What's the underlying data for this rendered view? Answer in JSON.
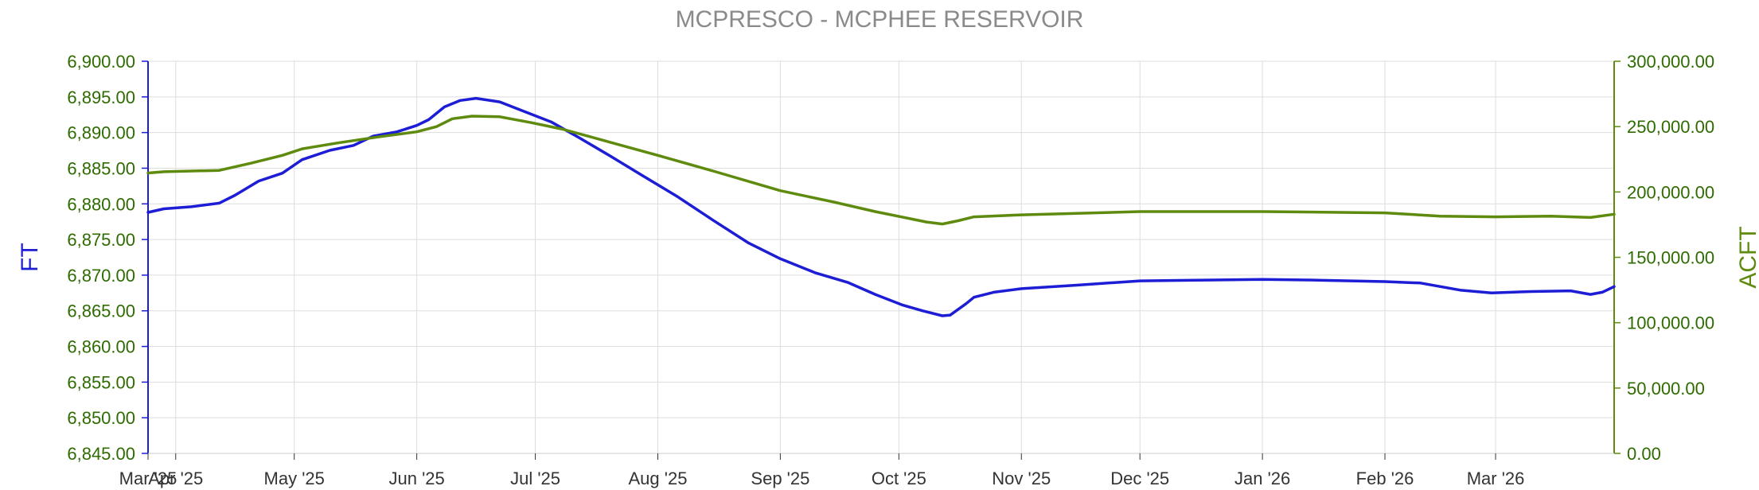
{
  "chart_data": {
    "type": "line",
    "title": "MCPRESCO - MCPHEE RESERVOIR",
    "ylabel_left": "FT",
    "ylabel_right": "ACFT",
    "x_start": "2025-03-25",
    "x_end": "2026-03-31",
    "left_axis": {
      "ylim": [
        6845,
        6900
      ],
      "ticks": [
        "6,845.00",
        "6,850.00",
        "6,855.00",
        "6,860.00",
        "6,865.00",
        "6,870.00",
        "6,875.00",
        "6,880.00",
        "6,885.00",
        "6,890.00",
        "6,895.00",
        "6,900.00"
      ],
      "color": "#1d1dd6"
    },
    "right_axis": {
      "ylim": [
        0,
        300000
      ],
      "ticks": [
        "0.00",
        "50,000.00",
        "100,000.00",
        "150,000.00",
        "200,000.00",
        "250,000.00",
        "300,000.00"
      ],
      "color": "#5e8a0e"
    },
    "x_ticks": [
      {
        "date": "2025-03-25",
        "label": "Mar '25"
      },
      {
        "date": "2025-04-01",
        "label": "Apr '25"
      },
      {
        "date": "2025-05-01",
        "label": "May '25"
      },
      {
        "date": "2025-06-01",
        "label": "Jun '25"
      },
      {
        "date": "2025-07-01",
        "label": "Jul '25"
      },
      {
        "date": "2025-08-01",
        "label": "Aug '25"
      },
      {
        "date": "2025-09-01",
        "label": "Sep '25"
      },
      {
        "date": "2025-10-01",
        "label": "Oct '25"
      },
      {
        "date": "2025-11-01",
        "label": "Nov '25"
      },
      {
        "date": "2025-12-01",
        "label": "Dec '25"
      },
      {
        "date": "2026-01-01",
        "label": "Jan '26"
      },
      {
        "date": "2026-02-01",
        "label": "Feb '26"
      },
      {
        "date": "2026-03-01",
        "label": "Mar '26"
      }
    ],
    "grid": true,
    "series": [
      {
        "axis": "left",
        "color": "#1d1dd6",
        "points": [
          [
            "2025-03-25",
            6878.8
          ],
          [
            "2025-03-29",
            6879.3
          ],
          [
            "2025-04-05",
            6879.6
          ],
          [
            "2025-04-12",
            6880.1
          ],
          [
            "2025-04-16",
            6881.2
          ],
          [
            "2025-04-22",
            6883.2
          ],
          [
            "2025-04-28",
            6884.3
          ],
          [
            "2025-05-03",
            6886.2
          ],
          [
            "2025-05-10",
            6887.5
          ],
          [
            "2025-05-16",
            6888.2
          ],
          [
            "2025-05-21",
            6889.5
          ],
          [
            "2025-05-27",
            6890.1
          ],
          [
            "2025-06-01",
            6891.0
          ],
          [
            "2025-06-04",
            6891.8
          ],
          [
            "2025-06-08",
            6893.6
          ],
          [
            "2025-06-12",
            6894.5
          ],
          [
            "2025-06-16",
            6894.8
          ],
          [
            "2025-06-22",
            6894.3
          ],
          [
            "2025-06-28",
            6893.0
          ],
          [
            "2025-07-05",
            6891.5
          ],
          [
            "2025-07-12",
            6889.3
          ],
          [
            "2025-07-20",
            6886.7
          ],
          [
            "2025-07-28",
            6884.0
          ],
          [
            "2025-08-06",
            6881.0
          ],
          [
            "2025-08-15",
            6877.7
          ],
          [
            "2025-08-24",
            6874.5
          ],
          [
            "2025-09-01",
            6872.3
          ],
          [
            "2025-09-10",
            6870.3
          ],
          [
            "2025-09-18",
            6869.0
          ],
          [
            "2025-09-25",
            6867.3
          ],
          [
            "2025-10-02",
            6865.8
          ],
          [
            "2025-10-07",
            6865.0
          ],
          [
            "2025-10-12",
            6864.3
          ],
          [
            "2025-10-14",
            6864.4
          ],
          [
            "2025-10-18",
            6866.0
          ],
          [
            "2025-10-20",
            6866.9
          ],
          [
            "2025-10-25",
            6867.6
          ],
          [
            "2025-11-01",
            6868.1
          ],
          [
            "2025-11-15",
            6868.6
          ],
          [
            "2025-12-01",
            6869.2
          ],
          [
            "2025-12-15",
            6869.3
          ],
          [
            "2026-01-01",
            6869.4
          ],
          [
            "2026-01-15",
            6869.3
          ],
          [
            "2026-02-01",
            6869.1
          ],
          [
            "2026-02-10",
            6868.9
          ],
          [
            "2026-02-20",
            6867.9
          ],
          [
            "2026-02-28",
            6867.5
          ],
          [
            "2026-03-10",
            6867.7
          ],
          [
            "2026-03-20",
            6867.8
          ],
          [
            "2026-03-25",
            6867.3
          ],
          [
            "2026-03-28",
            6867.6
          ],
          [
            "2026-03-31",
            6868.4
          ]
        ]
      },
      {
        "axis": "right",
        "color": "#5e8a0e",
        "points": [
          [
            "2025-03-25",
            214500
          ],
          [
            "2025-03-29",
            215500
          ],
          [
            "2025-04-05",
            216000
          ],
          [
            "2025-04-12",
            216500
          ],
          [
            "2025-04-20",
            222000
          ],
          [
            "2025-04-28",
            228000
          ],
          [
            "2025-05-03",
            233000
          ],
          [
            "2025-05-12",
            237500
          ],
          [
            "2025-05-22",
            242000
          ],
          [
            "2025-06-01",
            246000
          ],
          [
            "2025-06-06",
            250000
          ],
          [
            "2025-06-10",
            256000
          ],
          [
            "2025-06-15",
            258000
          ],
          [
            "2025-06-22",
            257500
          ],
          [
            "2025-06-30",
            253000
          ],
          [
            "2025-07-08",
            248000
          ],
          [
            "2025-07-20",
            238000
          ],
          [
            "2025-08-01",
            228000
          ],
          [
            "2025-08-15",
            216000
          ],
          [
            "2025-09-01",
            201000
          ],
          [
            "2025-09-15",
            192000
          ],
          [
            "2025-09-25",
            185000
          ],
          [
            "2025-10-08",
            177000
          ],
          [
            "2025-10-12",
            175500
          ],
          [
            "2025-10-16",
            178000
          ],
          [
            "2025-10-20",
            181000
          ],
          [
            "2025-11-01",
            182500
          ],
          [
            "2025-12-01",
            185000
          ],
          [
            "2026-01-01",
            185000
          ],
          [
            "2026-02-01",
            184000
          ],
          [
            "2026-02-15",
            181500
          ],
          [
            "2026-03-01",
            181000
          ],
          [
            "2026-03-15",
            181500
          ],
          [
            "2026-03-25",
            180500
          ],
          [
            "2026-03-31",
            183000
          ]
        ]
      }
    ]
  }
}
